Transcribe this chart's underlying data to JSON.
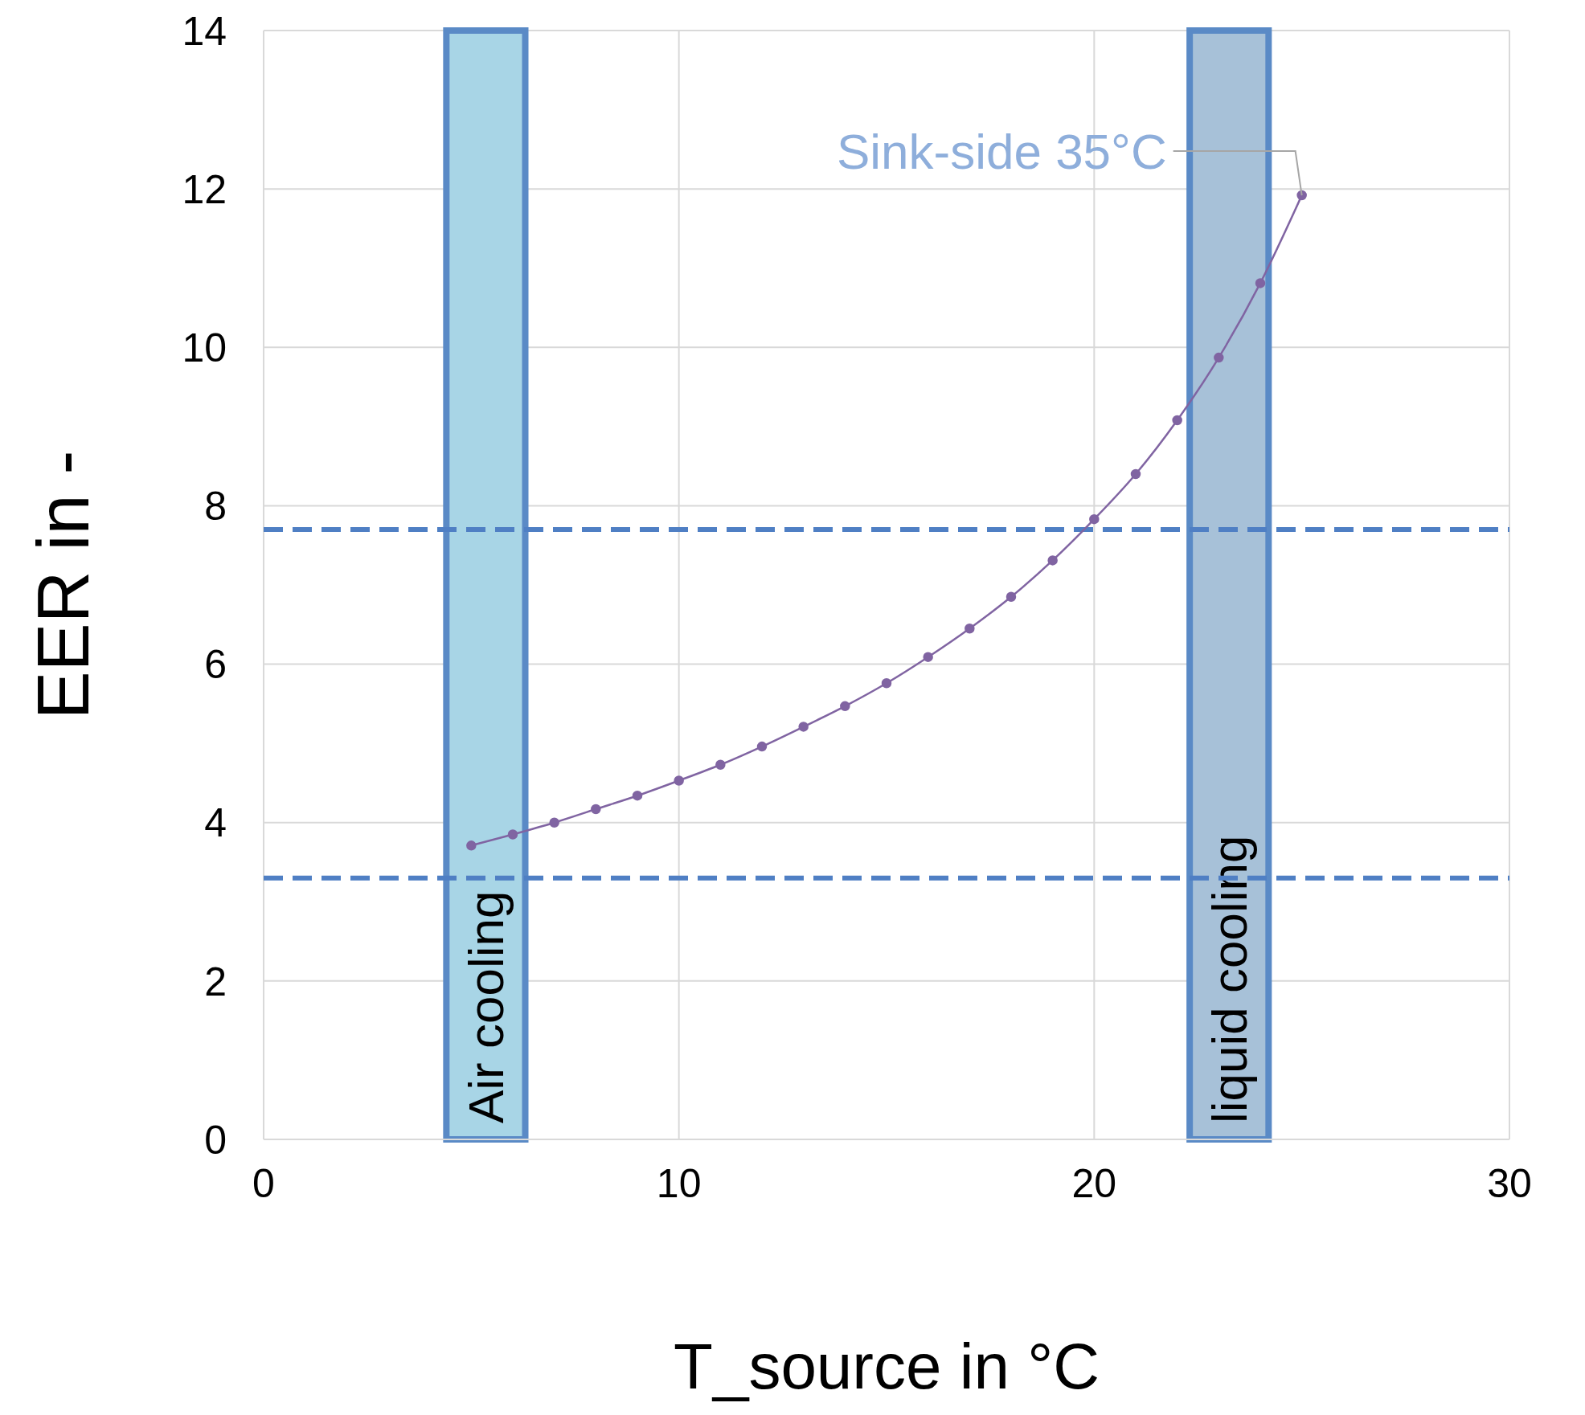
{
  "chart_data": {
    "type": "line",
    "xlabel": "T_source in °C",
    "ylabel": "EER in -",
    "x": [
      5,
      6,
      7,
      8,
      9,
      10,
      11,
      12,
      13,
      14,
      15,
      16,
      17,
      18,
      19,
      20,
      21,
      22,
      23,
      24,
      25
    ],
    "series": [
      {
        "color": "#8064a2",
        "values": [
          3.71,
          3.85,
          4.0,
          4.17,
          4.34,
          4.53,
          4.73,
          4.96,
          5.21,
          5.47,
          5.76,
          6.09,
          6.45,
          6.85,
          7.31,
          7.83,
          8.4,
          9.08,
          9.87,
          10.81,
          11.92
        ]
      }
    ],
    "xlim": [
      0,
      30
    ],
    "xticks": [
      0,
      10,
      20,
      30
    ],
    "ylim": [
      0,
      14
    ],
    "yticks": [
      0,
      2,
      4,
      6,
      8,
      10,
      12,
      14
    ],
    "grid": true,
    "marker": "circle",
    "line_style": "solid",
    "bands": [
      {
        "axis": "x",
        "from": 4.4,
        "to": 6.3,
        "label": "Air cooling",
        "color": "#a8d5e6"
      },
      {
        "axis": "x",
        "from": 22.3,
        "to": 24.2,
        "label": "liquid cooling",
        "color": "#a7c1d8"
      }
    ],
    "ref_lines": [
      {
        "axis": "y",
        "value": 7.7,
        "color": "#4f7fc4",
        "line_style": "dashed"
      },
      {
        "axis": "y",
        "value": 3.3,
        "color": "#4f7fc4",
        "line_style": "dashed"
      }
    ],
    "annotations": [
      {
        "text": "Sink-side 35°C",
        "x": 25,
        "y": 11.92
      }
    ]
  }
}
